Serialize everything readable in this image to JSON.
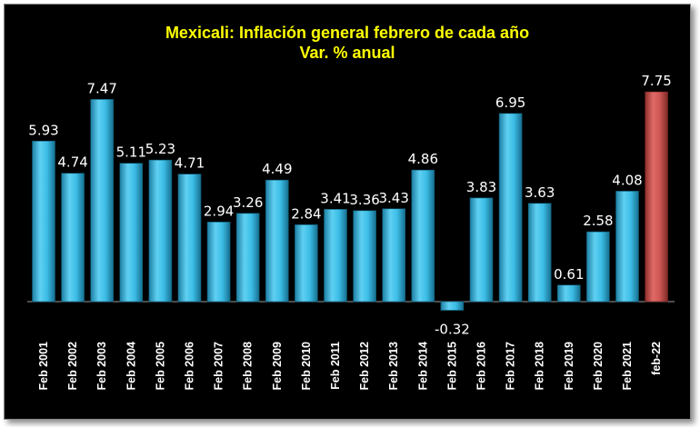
{
  "chart_data": {
    "type": "bar",
    "title": "Mexicali: Inflación general febrero de cada año",
    "subtitle": "Var. % anual",
    "categories": [
      "Feb 2001",
      "Feb 2002",
      "Feb 2003",
      "Feb 2004",
      "Feb 2005",
      "Feb 2006",
      "Feb 2007",
      "Feb 2008",
      "Feb 2009",
      "Feb 2010",
      "Feb 2011",
      "Feb 2012",
      "Feb 2013",
      "Feb 2014",
      "Feb 2015",
      "Feb 2016",
      "Feb 2017",
      "Feb 2018",
      "Feb 2019",
      "Feb 2020",
      "Feb 2021",
      "feb-22"
    ],
    "values": [
      5.93,
      4.74,
      7.47,
      5.11,
      5.23,
      4.71,
      2.94,
      3.26,
      4.49,
      2.84,
      3.41,
      3.36,
      3.43,
      4.86,
      -0.32,
      3.83,
      6.95,
      3.63,
      0.61,
      2.58,
      4.08,
      7.75
    ],
    "labels": [
      "5.93",
      "4.74",
      "7.47",
      "5.11",
      "5.23",
      "4.71",
      "2.94",
      "3.26",
      "4.49",
      "2.84",
      "3.41",
      "3.36",
      "3.43",
      "4.86",
      "-0.32",
      "3.83",
      "6.95",
      "3.63",
      "0.61",
      "2.58",
      "4.08",
      "7.75"
    ],
    "highlight_index": 21,
    "colors": {
      "bar": "#35b6e2",
      "highlight": "#c0504d",
      "background": "#000000",
      "title": "#ffff00",
      "text": "#ffffff"
    },
    "grid": false,
    "legend": "none"
  }
}
